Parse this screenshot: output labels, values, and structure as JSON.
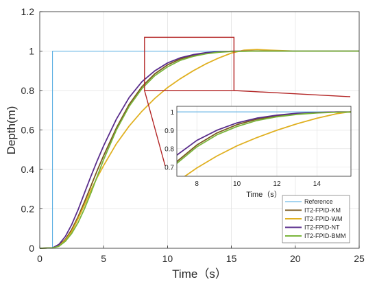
{
  "chart_data": {
    "type": "line",
    "xlabel": "Time（s）",
    "ylabel": "Depth(m)",
    "xlim": [
      0,
      25
    ],
    "ylim": [
      0,
      1.2
    ],
    "xticks": [
      "0",
      "5",
      "10",
      "15",
      "20",
      "25"
    ],
    "yticks": [
      "0",
      "0.2",
      "0.4",
      "0.6",
      "0.8",
      "1",
      "1.2"
    ],
    "grid": true,
    "legend_position": "bottom-right",
    "series": [
      {
        "name": "Reference",
        "color": "#4aa8e0",
        "x": [
          0,
          1,
          1,
          25
        ],
        "y": [
          0,
          0,
          1,
          1
        ]
      },
      {
        "name": "IT2-FPID-KM",
        "color": "#7a5a1e",
        "x": [
          0,
          1,
          1.5,
          2,
          2.5,
          3,
          3.5,
          4,
          4.5,
          5,
          6,
          7,
          8,
          9,
          10,
          11,
          12,
          13,
          14,
          15,
          17,
          20,
          25
        ],
        "y": [
          0,
          0.002,
          0.015,
          0.045,
          0.095,
          0.16,
          0.235,
          0.315,
          0.395,
          0.47,
          0.61,
          0.73,
          0.82,
          0.885,
          0.93,
          0.96,
          0.978,
          0.99,
          0.996,
          0.999,
          1.0,
          1.0,
          1.0
        ]
      },
      {
        "name": "IT2-FPID-WM",
        "color": "#e0b020",
        "x": [
          0,
          1,
          1.5,
          2,
          2.5,
          3,
          3.5,
          4,
          4.5,
          5,
          6,
          7,
          8,
          9,
          10,
          11,
          12,
          13,
          14,
          15,
          16,
          17,
          18,
          19,
          20,
          25
        ],
        "y": [
          0,
          0.002,
          0.012,
          0.04,
          0.085,
          0.15,
          0.22,
          0.295,
          0.36,
          0.42,
          0.53,
          0.62,
          0.695,
          0.76,
          0.815,
          0.86,
          0.9,
          0.935,
          0.965,
          0.99,
          1.005,
          1.008,
          1.005,
          1.002,
          1.0,
          1.0
        ]
      },
      {
        "name": "IT2-FPID-NT",
        "color": "#5a2d8c",
        "x": [
          0,
          1,
          1.5,
          2,
          2.5,
          3,
          3.5,
          4,
          4.5,
          5,
          6,
          7,
          8,
          9,
          10,
          11,
          12,
          13,
          14,
          15,
          17,
          20,
          25
        ],
        "y": [
          0,
          0.002,
          0.02,
          0.06,
          0.12,
          0.195,
          0.28,
          0.365,
          0.445,
          0.52,
          0.655,
          0.765,
          0.845,
          0.9,
          0.94,
          0.966,
          0.982,
          0.992,
          0.997,
          0.999,
          1.0,
          1.0,
          1.0
        ]
      },
      {
        "name": "IT2-FPID-BMM",
        "color": "#79b53a",
        "x": [
          0,
          1,
          1.5,
          2,
          2.5,
          3,
          3.5,
          4,
          4.5,
          5,
          6,
          7,
          8,
          9,
          10,
          11,
          12,
          13,
          14,
          15,
          17,
          20,
          25
        ],
        "y": [
          0,
          0.002,
          0.01,
          0.035,
          0.075,
          0.13,
          0.2,
          0.28,
          0.365,
          0.45,
          0.6,
          0.72,
          0.81,
          0.875,
          0.92,
          0.953,
          0.973,
          0.986,
          0.994,
          0.998,
          1.0,
          1.0,
          1.0
        ]
      }
    ],
    "inset": {
      "xlim": [
        7,
        15.7
      ],
      "ylim": [
        0.65,
        1.03
      ],
      "xticks": [
        "8",
        "10",
        "12",
        "14"
      ],
      "yticks": [
        "0.7",
        "0.8",
        "0.9",
        "1"
      ],
      "xlabel": "Time（s）",
      "zoom_region": {
        "x": [
          8.2,
          15.2
        ],
        "y": [
          0.8,
          1.07
        ]
      }
    }
  }
}
